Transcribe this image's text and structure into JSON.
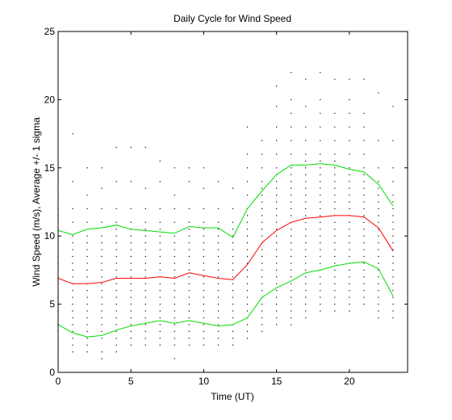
{
  "chart_data": {
    "type": "line",
    "title": "Daily Cycle for Wind Speed",
    "xlabel": "Time (UT)",
    "ylabel": "Wind Speed (m/s), Average +/- 1 sigma",
    "xlim": [
      0,
      24
    ],
    "ylim": [
      0,
      25
    ],
    "xticks": [
      0,
      5,
      10,
      15,
      20
    ],
    "yticks": [
      0,
      5,
      10,
      15,
      20,
      25
    ],
    "grid": false,
    "legend": "none",
    "x": [
      0,
      1,
      2,
      3,
      4,
      5,
      6,
      7,
      8,
      9,
      10,
      11,
      12,
      13,
      14,
      15,
      16,
      17,
      18,
      19,
      20,
      21,
      22,
      23
    ],
    "series": [
      {
        "role": "mean",
        "color": "#ff0000",
        "values": [
          6.9,
          6.5,
          6.5,
          6.6,
          6.9,
          6.9,
          6.9,
          7.0,
          6.9,
          7.3,
          7.1,
          6.9,
          6.8,
          7.9,
          9.5,
          10.4,
          11.0,
          11.3,
          11.4,
          11.5,
          11.5,
          11.4,
          10.6,
          8.9
        ]
      },
      {
        "role": "mean + 1 sigma",
        "color": "#00dd00",
        "values": [
          10.4,
          10.1,
          10.5,
          10.6,
          10.8,
          10.5,
          10.4,
          10.3,
          10.2,
          10.7,
          10.6,
          10.6,
          9.9,
          12.0,
          13.3,
          14.5,
          15.2,
          15.2,
          15.3,
          15.2,
          14.9,
          14.7,
          13.8,
          12.2
        ]
      },
      {
        "role": "mean - 1 sigma",
        "color": "#00dd00",
        "values": [
          3.5,
          2.9,
          2.6,
          2.7,
          3.1,
          3.4,
          3.6,
          3.8,
          3.6,
          3.8,
          3.6,
          3.4,
          3.5,
          4.0,
          5.5,
          6.2,
          6.7,
          7.3,
          7.5,
          7.8,
          8.0,
          8.1,
          7.6,
          5.6
        ]
      }
    ],
    "scatter": {
      "color": "#000000",
      "observations": [
        [
          0,
          [
            0.5,
            1.5,
            2.5,
            3,
            3.5,
            4,
            4.5,
            5,
            5.5,
            6,
            6.5,
            7,
            7.5,
            8,
            8.5,
            9,
            9.5,
            10,
            10.5,
            11,
            11.5,
            12,
            13,
            14
          ]
        ],
        [
          1,
          [
            1.5,
            2,
            2.5,
            3,
            3.5,
            4,
            4.5,
            5,
            5.5,
            6,
            6.5,
            7,
            7.5,
            8,
            8.5,
            9,
            9.5,
            10,
            11,
            12,
            14,
            17.5
          ]
        ],
        [
          2,
          [
            1.5,
            2,
            2.5,
            3,
            3.5,
            4,
            4.5,
            5,
            5.5,
            6,
            6.5,
            7,
            7.5,
            8,
            8.5,
            9,
            9.5,
            10,
            11,
            12,
            13,
            15
          ]
        ],
        [
          3,
          [
            1,
            1.5,
            2.5,
            3,
            3.5,
            4,
            4.5,
            5,
            5.5,
            6,
            6.5,
            7,
            7.5,
            8,
            8.5,
            9,
            9.5,
            10,
            11,
            12,
            13.5,
            15
          ]
        ],
        [
          4,
          [
            1.5,
            2,
            2.5,
            3,
            3.5,
            4,
            4.5,
            5,
            5.5,
            6,
            6.5,
            7,
            7.5,
            8,
            8.5,
            9,
            9.5,
            10,
            10.5,
            11,
            12,
            14,
            16.5
          ]
        ],
        [
          5,
          [
            2,
            2.5,
            3,
            3.5,
            4,
            4.5,
            5,
            5.5,
            6,
            6.5,
            7,
            7.5,
            8,
            8.5,
            9,
            9.5,
            10,
            10.5,
            11,
            12,
            14,
            16.5
          ]
        ],
        [
          6,
          [
            2,
            2.5,
            3,
            3.5,
            4,
            4.5,
            5,
            5.5,
            6,
            6.5,
            7,
            7.5,
            8,
            8.5,
            9,
            9.5,
            10,
            10.5,
            11,
            12,
            13.5,
            16.5
          ]
        ],
        [
          7,
          [
            2,
            2.5,
            3,
            3.5,
            4,
            4.5,
            5,
            5.5,
            6,
            6.5,
            7,
            7.5,
            8,
            8.5,
            9,
            9.5,
            10,
            10.5,
            11,
            12,
            14,
            15.5
          ]
        ],
        [
          8,
          [
            1,
            2,
            2.5,
            3,
            3.5,
            4,
            4.5,
            5,
            5.5,
            6,
            6.5,
            7,
            7.5,
            8,
            8.5,
            9,
            9.5,
            10,
            11,
            12,
            13,
            15
          ]
        ],
        [
          9,
          [
            2,
            2.5,
            3,
            3.5,
            4,
            4.5,
            5,
            5.5,
            6,
            6.5,
            7,
            7.5,
            8,
            8.5,
            9,
            9.5,
            10,
            10.5,
            11,
            12,
            14,
            15
          ]
        ],
        [
          10,
          [
            2,
            2.5,
            3,
            3.5,
            4,
            4.5,
            5,
            5.5,
            6,
            6.5,
            7,
            7.5,
            8,
            8.5,
            9,
            9.5,
            10,
            10.5,
            11,
            12,
            13.5,
            15
          ]
        ],
        [
          11,
          [
            2,
            2.5,
            3,
            3.5,
            4,
            4.5,
            5,
            5.5,
            6,
            6.5,
            7,
            7.5,
            8,
            8.5,
            9,
            9.5,
            10,
            10.5,
            11,
            12,
            14
          ]
        ],
        [
          12,
          [
            2,
            2.5,
            3,
            3.5,
            4,
            4.5,
            5,
            5.5,
            6,
            6.5,
            7,
            7.5,
            8,
            8.5,
            9,
            9.5,
            10,
            10.5,
            11,
            12,
            13.5
          ]
        ],
        [
          13,
          [
            2.5,
            3,
            3.5,
            4,
            4.5,
            5,
            5.5,
            6,
            6.5,
            7,
            7.5,
            8,
            8.5,
            9,
            9.5,
            10,
            10.5,
            11,
            11.5,
            12,
            13,
            14,
            15,
            16,
            18
          ]
        ],
        [
          14,
          [
            3,
            3.5,
            4,
            4.5,
            5,
            5.5,
            6,
            6.5,
            7,
            7.5,
            8,
            8.5,
            9,
            9.5,
            10,
            10.5,
            11,
            11.5,
            12,
            12.5,
            13,
            13.5,
            14,
            15,
            16,
            17
          ]
        ],
        [
          15,
          [
            3.5,
            4,
            4.5,
            5,
            5.5,
            6,
            6.5,
            7,
            7.5,
            8,
            8.5,
            9,
            9.5,
            10,
            10.5,
            11,
            11.5,
            12,
            12.5,
            13,
            13.5,
            14,
            14.5,
            15,
            16,
            17,
            18,
            19.5,
            21
          ]
        ],
        [
          16,
          [
            3.5,
            4,
            4.5,
            5,
            5.5,
            6,
            6.5,
            7,
            7.5,
            8,
            8.5,
            9,
            9.5,
            10,
            10.5,
            11,
            11.5,
            12,
            12.5,
            13,
            13.5,
            14,
            14.5,
            15,
            16,
            17,
            18,
            19,
            20,
            22
          ]
        ],
        [
          17,
          [
            4,
            4.5,
            5,
            5.5,
            6,
            6.5,
            7,
            7.5,
            8,
            8.5,
            9,
            9.5,
            10,
            10.5,
            11,
            11.5,
            12,
            12.5,
            13,
            13.5,
            14,
            14.5,
            15,
            15.5,
            16,
            17,
            18,
            19.5,
            21.5
          ]
        ],
        [
          18,
          [
            4.5,
            5,
            5.5,
            6,
            6.5,
            7,
            7.5,
            8,
            8.5,
            9,
            9.5,
            10,
            10.5,
            11,
            11.5,
            12,
            12.5,
            13,
            13.5,
            14,
            14.5,
            15,
            15.5,
            16,
            17,
            18,
            19,
            20,
            22
          ]
        ],
        [
          19,
          [
            4.5,
            5,
            5.5,
            6,
            6.5,
            7,
            7.5,
            8,
            8.5,
            9,
            9.5,
            10,
            10.5,
            11,
            11.5,
            12,
            12.5,
            13,
            13.5,
            14,
            14.5,
            15,
            15.5,
            16,
            17,
            18,
            19,
            21.5
          ]
        ],
        [
          20,
          [
            4.5,
            5,
            5.5,
            6,
            6.5,
            7,
            7.5,
            8,
            8.5,
            9,
            9.5,
            10,
            10.5,
            11,
            11.5,
            12,
            12.5,
            13,
            13.5,
            14,
            14.5,
            15,
            16,
            17,
            18,
            19,
            20,
            21.5
          ]
        ],
        [
          21,
          [
            5,
            5.5,
            6,
            6.5,
            7,
            7.5,
            8,
            8.5,
            9,
            9.5,
            10,
            10.5,
            11,
            11.5,
            12,
            12.5,
            13,
            13.5,
            14,
            14.5,
            15,
            16,
            17,
            18,
            19,
            21.5
          ]
        ],
        [
          22,
          [
            4,
            4.5,
            5,
            5.5,
            6,
            6.5,
            7,
            7.5,
            8,
            8.5,
            9,
            9.5,
            10,
            10.5,
            11,
            11.5,
            12,
            12.5,
            13,
            13.5,
            14,
            15,
            17,
            20.5
          ]
        ],
        [
          23,
          [
            4,
            4.5,
            5,
            5.5,
            6,
            6.5,
            7,
            7.5,
            8,
            8.5,
            9,
            9.5,
            10,
            10.5,
            11,
            11.5,
            12,
            12.5,
            13,
            14,
            15,
            17,
            19.5
          ]
        ]
      ]
    }
  }
}
